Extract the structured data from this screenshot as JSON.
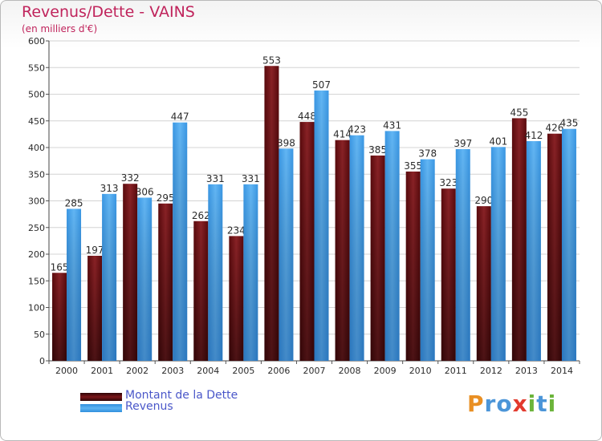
{
  "header": {
    "title": "Revenus/Dette - VAINS",
    "subtitle": "(en milliers d'€)"
  },
  "brand": {
    "letters": [
      "P",
      "r",
      "o",
      "x",
      "i",
      "t",
      "i"
    ],
    "colors": [
      "#e98f23",
      "#4b95d8",
      "#4b95d8",
      "#e23a2e",
      "#6bb43a",
      "#4b95d8",
      "#6bb43a"
    ]
  },
  "colors": {
    "debt": "#6b0f12",
    "revenue": "#4aa3e8",
    "grid": "#d4d4d4",
    "axis_text": "#2b2b2b"
  },
  "chart_data": {
    "type": "bar",
    "title": "Revenus/Dette - VAINS",
    "subtitle": "(en milliers d'€)",
    "categories": [
      "2000",
      "2001",
      "2002",
      "2003",
      "2004",
      "2005",
      "2006",
      "2007",
      "2008",
      "2009",
      "2010",
      "2011",
      "2012",
      "2013",
      "2014"
    ],
    "series": [
      {
        "name": "Montant de la Dette",
        "values": [
          165,
          197,
          332,
          295,
          262,
          234,
          553,
          448,
          414,
          385,
          355,
          323,
          290,
          455,
          426
        ]
      },
      {
        "name": "Revenus",
        "values": [
          285,
          313,
          306,
          447,
          331,
          331,
          398,
          507,
          423,
          431,
          378,
          397,
          401,
          412,
          435
        ]
      }
    ],
    "ylim": [
      0,
      600
    ],
    "yticks": [
      0,
      50,
      100,
      150,
      200,
      250,
      300,
      350,
      400,
      450,
      500,
      550,
      600
    ],
    "grid": true,
    "legend": "bottom-left"
  }
}
